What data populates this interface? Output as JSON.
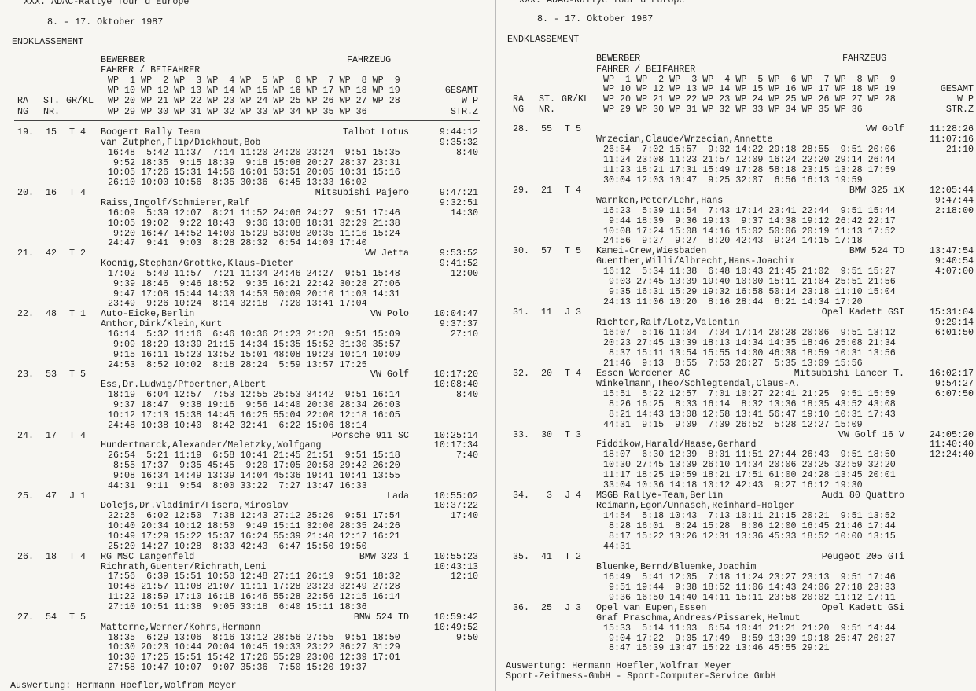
{
  "pages": [
    {
      "header": {
        "title": "XXX. ADAC-Rallye Tour d'Europe",
        "date": "8. - 17. Oktober 1987",
        "section": "ENDKLASSEMENT"
      },
      "columns": {
        "bewerber": "BEWERBER",
        "fahrzeug": "FAHRZEUG",
        "fahrer": "FAHRER / BEIFAHRER",
        "wp": [
          "WP  1 WP  2 WP  3 WP  4 WP  5 WP  6 WP  7 WP  8 WP  9",
          "WP 10 WP 12 WP 13 WP 14 WP 15 WP 16 WP 17 WP 18 WP 19",
          "WP 20 WP 21 WP 22 WP 23 WP 24 WP 25 WP 26 WP 27 WP 28",
          "WP 29 WP 30 WP 31 WP 32 WP 33 WP 34 WP 35 WP 36"
        ],
        "rang": [
          "RA",
          "NG"
        ],
        "st": [
          "ST.",
          "NR."
        ],
        "grkl": "GR/KL",
        "gesamt": [
          "GESAMT",
          "W P",
          "STR.Z"
        ]
      },
      "entries": [
        {
          "rank": "19.",
          "nr": "15",
          "kl": "T 4",
          "bewerber": "Boogert Rally Team",
          "fahrer": "van Zutphen,Flip/Dickhout,Bob",
          "fahrzeug": "Talbot Lotus",
          "gesamt": [
            "9:44:12",
            "9:35:32",
            "8:40"
          ],
          "times": [
            "16:48  5:42 11:37  7:14 11:20 24:20 23:24  9:51 15:35",
            " 9:52 18:35  9:15 18:39  9:18 15:08 20:27 28:37 23:31",
            "10:05 17:26 15:31 14:56 16:01 53:51 20:05 10:31 15:16",
            "26:10 10:00 10:56  8:35 30:36  6:45 13:33 16:02"
          ]
        },
        {
          "rank": "20.",
          "nr": "16",
          "kl": "T 4",
          "fahrer": "Raiss,Ingolf/Schmierer,Ralf",
          "fahrzeug": "Mitsubishi Pajero",
          "gesamt": [
            "9:47:21",
            "9:32:51",
            "14:30"
          ],
          "times": [
            "16:09  5:39 12:07  8:21 11:52 24:06 24:27  9:51 17:46",
            "10:05 19:02  9:22 18:43  9:36 13:08 18:31 32:29 21:38",
            " 9:20 16:47 14:52 14:00 15:29 53:08 20:35 11:16 15:24",
            "24:47  9:41  9:03  8:28 28:32  6:54 14:03 17:40"
          ]
        },
        {
          "rank": "21.",
          "nr": "42",
          "kl": "T 2",
          "fahrer": "Koenig,Stephan/Grottke,Klaus-Dieter",
          "fahrzeug": "VW Jetta",
          "gesamt": [
            "9:53:52",
            "9:41:52",
            "12:00"
          ],
          "times": [
            "17:02  5:40 11:57  7:21 11:34 24:46 24:27  9:51 15:48",
            " 9:39 18:46  9:46 18:52  9:35 16:21 22:42 30:28 27:06",
            " 9:47 17:08 15:44 14:30 14:53 50:09 20:10 11:03 14:31",
            "23:49  9:26 10:24  8:14 32:18  7:20 13:41 17:04"
          ]
        },
        {
          "rank": "22.",
          "nr": "48",
          "kl": "T 1",
          "bewerber": "Auto-Eicke,Berlin",
          "fahrer": "Amthor,Dirk/Klein,Kurt",
          "fahrzeug": "VW Polo",
          "gesamt": [
            "10:04:47",
            "9:37:37",
            "27:10"
          ],
          "times": [
            "16:14  5:32 11:16  6:46 10:36 21:23 21:28  9:51 15:09",
            " 9:09 18:29 13:39 21:15 14:34 15:35 15:52 31:30 35:57",
            " 9:15 16:11 15:23 13:52 15:01 48:08 19:23 10:14 10:09",
            "24:53  8:52 10:02  8:18 28:24  5:59 13:57 17:25"
          ]
        },
        {
          "rank": "23.",
          "nr": "53",
          "kl": "T 5",
          "fahrer": "Ess,Dr.Ludwig/Pfoertner,Albert",
          "fahrzeug": "VW Golf",
          "gesamt": [
            "10:17:20",
            "10:08:40",
            "8:40"
          ],
          "times": [
            "18:19  6:04 12:57  7:53 12:55 25:53 34:42  9:51 16:14",
            " 9:37 18:47  9:38 19:16  9:56 14:40 20:30 28:34 26:03",
            "10:12 17:13 15:38 14:45 16:25 55:04 22:00 12:18 16:05",
            "24:48 10:38 10:40  8:42 32:41  6:22 15:06 18:14"
          ]
        },
        {
          "rank": "24.",
          "nr": "17",
          "kl": "T 4",
          "fahrer": "Hundertmarck,Alexander/Meletzky,Wolfgang",
          "fahrzeug": "Porsche 911 SC",
          "gesamt": [
            "10:25:14",
            "10:17:34",
            "7:40"
          ],
          "times": [
            "26:54  5:21 11:19  6:58 10:41 21:45 21:51  9:51 15:18",
            " 8:55 17:37  9:35 45:45  9:20 17:05 20:58 29:42 26:20",
            " 9:08 16:34 14:49 13:39 14:04 45:36 19:41 10:41 13:55",
            "44:31  9:11  9:54  8:00 33:22  7:27 13:47 16:33"
          ]
        },
        {
          "rank": "25.",
          "nr": "47",
          "kl": "J 1",
          "fahrer": "Dolejs,Dr.Vladimir/Fisera,Miroslav",
          "fahrzeug": "Lada",
          "gesamt": [
            "10:55:02",
            "10:37:22",
            "17:40"
          ],
          "times": [
            "22:25  6:02 12:50  7:38 12:43 27:12 25:20  9:51 17:54",
            "10:40 20:34 10:12 18:50  9:49 15:11 32:00 28:35 24:26",
            "10:49 17:29 15:22 15:37 16:24 55:39 21:40 12:17 16:21",
            "25:20 14:27 10:28  8:33 42:43  6:47 15:50 19:50"
          ]
        },
        {
          "rank": "26.",
          "nr": "18",
          "kl": "T 4",
          "bewerber": "RG MSC Langenfeld",
          "fahrer": "Richrath,Guenter/Richrath,Leni",
          "fahrzeug": "BMW 323 i",
          "gesamt": [
            "10:55:23",
            "10:43:13",
            "12:10"
          ],
          "times": [
            "17:56  6:39 15:51 10:50 12:48 27:11 26:19  9:51 18:32",
            "10:48 21:57 11:08 21:07 11:11 17:28 23:23 32:49 27:28",
            "11:22 18:59 17:10 16:18 16:46 55:28 22:56 12:15 16:14",
            "27:10 10:51 11:38  9:05 33:18  6:40 15:11 18:36"
          ]
        },
        {
          "rank": "27.",
          "nr": "54",
          "kl": "T 5",
          "fahrer": "Matterne,Werner/Kohrs,Hermann",
          "fahrzeug": "BMW 524 TD",
          "gesamt": [
            "10:59:42",
            "10:49:52",
            "9:50"
          ],
          "times": [
            "18:35  6:29 13:06  8:16 13:12 28:56 27:55  9:51 18:50",
            "10:30 20:23 10:44 20:04 10:45 19:33 23:22 36:27 31:29",
            "10:30 17:25 15:51 15:42 17:26 55:29 23:00 12:39 17:01",
            "27:58 10:47 10:07  9:07 35:36  7:50 15:20 19:37"
          ]
        }
      ],
      "footer": [
        "Auswertung: Hermann Hoefler,Wolfram Meyer"
      ]
    },
    {
      "header": {
        "title": "XXX. ADAC-Rallye Tour d'Europe",
        "date": "8. - 17. Oktober 1987",
        "section": "ENDKLASSEMENT"
      },
      "columns": {
        "bewerber": "BEWERBER",
        "fahrzeug": "FAHRZEUG",
        "fahrer": "FAHRER / BEIFAHRER",
        "wp": [
          "WP  1 WP  2 WP  3 WP  4 WP  5 WP  6 WP  7 WP  8 WP  9",
          "WP 10 WP 12 WP 13 WP 14 WP 15 WP 16 WP 17 WP 18 WP 19",
          "WP 20 WP 21 WP 22 WP 23 WP 24 WP 25 WP 26 WP 27 WP 28",
          "WP 29 WP 30 WP 31 WP 32 WP 33 WP 34 WP 35 WP 36"
        ],
        "rang": [
          "RA",
          "NG"
        ],
        "st": [
          "ST.",
          "NR."
        ],
        "grkl": "GR/KL",
        "gesamt": [
          "GESAMT",
          "W P",
          "STR.Z"
        ]
      },
      "entries": [
        {
          "rank": "28.",
          "nr": "55",
          "kl": "T 5",
          "fahrer": "Wrzecian,Claude/Wrzecian,Annette",
          "fahrzeug": "VW Golf",
          "gesamt": [
            "11:28:26",
            "11:07:16",
            "21:10"
          ],
          "times": [
            "26:54  7:02 15:57  9:02 14:22 29:18 28:55  9:51 20:06",
            "11:24 23:08 11:23 21:57 12:09 16:24 22:20 29:14 26:44",
            "11:23 18:21 17:31 15:49 17:28 58:18 23:15 13:28 17:59",
            "30:04 12:03 10:47  9:25 32:07  6:56 16:13 19:59"
          ]
        },
        {
          "rank": "29.",
          "nr": "21",
          "kl": "T 4",
          "fahrer": "Warnken,Peter/Lehr,Hans",
          "fahrzeug": "BMW 325 iX",
          "gesamt": [
            "12:05:44",
            "9:47:44",
            "2:18:00"
          ],
          "times": [
            "16:23  5:39 11:54  7:43 17:14 23:41 22:44  9:51 15:44",
            " 9:44 18:39  9:36 19:13  9:37 14:38 19:12 26:42 22:17",
            "10:08 17:24 15:08 14:16 15:02 50:06 20:19 11:13 17:52",
            "24:56  9:27  9:27  8:20 42:43  9:24 14:15 17:18"
          ]
        },
        {
          "rank": "30.",
          "nr": "57",
          "kl": "T 5",
          "bewerber": "Kamei-Crew,Wiesbaden",
          "fahrer": "Guenther,Willi/Albrecht,Hans-Joachim",
          "fahrzeug": "BMW 524 TD",
          "gesamt": [
            "13:47:54",
            "9:40:54",
            "4:07:00"
          ],
          "times": [
            "16:12  5:34 11:38  6:48 10:43 21:45 21:02  9:51 15:27",
            " 9:03 27:45 13:39 19:40 10:00 15:11 21:04 25:51 21:56",
            " 9:35 16:31 15:29 19:32 16:58 50:14 23:18 11:10 15:04",
            "24:13 11:06 10:20  8:16 28:44  6:21 14:34 17:20"
          ]
        },
        {
          "rank": "31.",
          "nr": "11",
          "kl": "J 3",
          "fahrer": "Richter,Ralf/Lotz,Valentin",
          "fahrzeug": "Opel Kadett GSI",
          "gesamt": [
            "15:31:04",
            "9:29:14",
            "6:01:50"
          ],
          "times": [
            "16:07  5:16 11:04  7:04 17:14 20:28 20:06  9:51 13:12",
            "20:23 27:45 13:39 18:13 14:34 14:35 18:46 25:08 21:34",
            " 8:37 15:11 13:54 15:55 14:00 46:38 18:59 10:31 13:56",
            "21:46  9:13  8:55  7:53 26:27  5:35 13:09 15:56"
          ]
        },
        {
          "rank": "32.",
          "nr": "20",
          "kl": "T 4",
          "bewerber": "Essen Werdener AC",
          "fahrer": "Winkelmann,Theo/Schlegtendal,Claus-A.",
          "fahrzeug": "Mitsubishi Lancer T.",
          "gesamt": [
            "16:02:17",
            "9:54:27",
            "6:07:50"
          ],
          "times": [
            "15:51  5:22 12:57  7:01 10:27 22:41 21:25  9:51 15:59",
            " 8:26 16:25  8:33 16:14  8:32 13:36 18:35 43:52 43:08",
            " 8:21 14:43 13:08 12:58 13:41 56:47 19:10 10:31 17:43",
            "44:31  9:15  9:09  7:39 26:52  5:28 12:27 15:09"
          ]
        },
        {
          "rank": "33.",
          "nr": "30",
          "kl": "T 3",
          "fahrer": "Fiddikow,Harald/Haase,Gerhard",
          "fahrzeug": "VW Golf 16 V",
          "gesamt": [
            "24:05:20",
            "11:40:40",
            "12:24:40"
          ],
          "times": [
            "18:07  6:30 12:39  8:01 11:51 27:44 26:43  9:51 18:50",
            "10:30 27:45 13:39 26:10 14:34 20:06 23:25 32:59 32:20",
            "11:17 18:25 19:59 18:21 17:51 61:00 24:28 13:45 20:01",
            "33:04 10:36 14:18 10:12 42:43  9:27 16:12 19:30"
          ]
        },
        {
          "rank": "34.",
          "nr": "3",
          "kl": "J 4",
          "bewerber": "MSGB Rallye-Team,Berlin",
          "fahrer": "Reimann,Egon/Unnasch,Reinhard-Holger",
          "fahrzeug": "Audi 80 Quattro",
          "times": [
            "14:54  5:18 10:43  7:13 10:11 21:15 20:21  9:51 13:52",
            " 8:28 16:01  8:24 15:28  8:06 12:00 16:45 21:46 17:44",
            " 8:17 15:22 13:26 12:31 13:36 45:33 18:52 10:00 13:15",
            "44:31"
          ]
        },
        {
          "rank": "35.",
          "nr": "41",
          "kl": "T 2",
          "fahrer": "Bluemke,Bernd/Bluemke,Joachim",
          "fahrzeug": "Peugeot 205 GTi",
          "times": [
            "16:49  5:41 12:05  7:18 11:24 23:27 23:13  9:51 17:46",
            " 9:51 19:44  9:38 18:52 11:06 14:43 24:06 27:18 23:33",
            " 9:36 16:50 14:40 14:11 15:11 23:58 20:02 11:12 17:11"
          ]
        },
        {
          "rank": "36.",
          "nr": "25",
          "kl": "J 3",
          "bewerber": "Opel van Eupen,Essen",
          "fahrer": "Graf Praschma,Andreas/Pissarek,Helmut",
          "fahrzeug": "Opel Kadett GSi",
          "times": [
            "15:33  5:14 11:03  6:54 10:41 21:21 21:20  9:51 14:44",
            " 9:04 17:22  9:05 17:49  8:59 13:39 19:18 25:47 20:27",
            " 8:47 15:39 13:47 15:22 13:46 45:55 29:21"
          ]
        }
      ],
      "footer": [
        "Auswertung: Hermann Hoefler,Wolfram Meyer",
        "Sport-Zeitmess-GmbH - Sport-Computer-Service GmbH"
      ]
    }
  ]
}
